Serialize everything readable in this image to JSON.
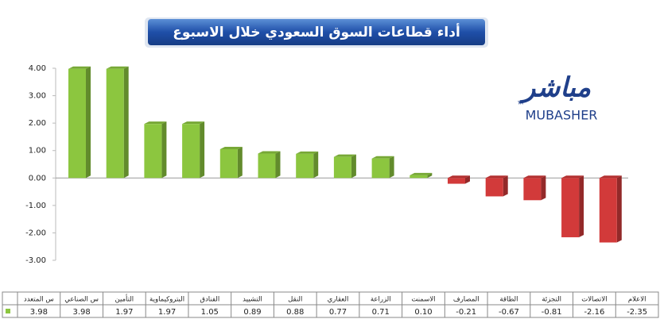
{
  "chart_data": {
    "type": "bar3d",
    "title": "أداء قطاعات السوق السعودي خلال الاسبوع",
    "logo": {
      "arabic": "مباشر",
      "latin": "MUBASHER",
      "mark": "TM"
    },
    "categories": [
      "س المتعدد",
      "س الصناعي",
      "التأمين",
      "البتروكيماوية",
      "الفنادق",
      "التشييد",
      "النقل",
      "العقاري",
      "الزراعة",
      "الاسمنت",
      "المصارف",
      "الطاقة",
      "التجزئة",
      "الاتصالات",
      "الاعلام"
    ],
    "values": [
      3.98,
      3.98,
      1.97,
      1.97,
      1.05,
      0.89,
      0.88,
      0.77,
      0.71,
      0.1,
      -0.21,
      -0.67,
      -0.81,
      -2.16,
      -2.35
    ],
    "value_labels": [
      "3.98",
      "3.98",
      "1.97",
      "1.97",
      "1.05",
      "0.89",
      "0.88",
      "0.77",
      "0.71",
      "0.10",
      "-0.21",
      "-0.67",
      "-0.81",
      "-2.16",
      "-2.35"
    ],
    "positive_color": "#8cc63f",
    "negative_color": "#d23a3a",
    "ylim": [
      -3,
      4
    ],
    "yticks": [
      {
        "value": 4,
        "label": "4.00"
      },
      {
        "value": 3,
        "label": "3.00"
      },
      {
        "value": 2,
        "label": "2.00"
      },
      {
        "value": 1,
        "label": "1.00"
      },
      {
        "value": 0,
        "label": "0.00"
      },
      {
        "value": -1,
        "label": "-1.00"
      },
      {
        "value": -2,
        "label": "-2.00"
      },
      {
        "value": -3,
        "label": "-3.00"
      }
    ],
    "data_table": true
  }
}
